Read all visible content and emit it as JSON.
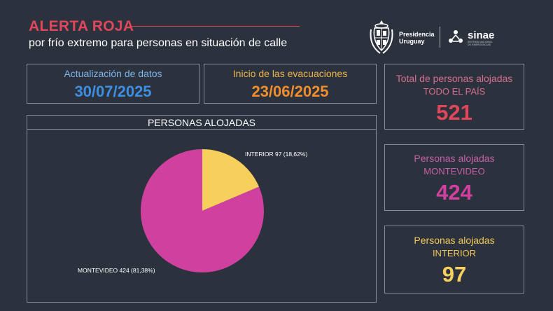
{
  "header": {
    "title": "ALERTA ROJA",
    "subtitle": "por frío extremo para personas en situación de calle"
  },
  "logos": {
    "presidencia_line1": "Presidencia",
    "presidencia_line2": "Uruguay",
    "sinae_name": "sinae",
    "sinae_line1": "SISTEMA NACIONAL",
    "sinae_line2": "DE EMERGENCIAS"
  },
  "cards": {
    "actualizacion": {
      "label": "Actualización de datos",
      "value": "30/07/2025"
    },
    "inicio": {
      "label": "Inicio de las evacuaciones",
      "value": "23/06/2025"
    },
    "total": {
      "label": "Total de personas alojadas",
      "scope": "TODO EL PAÍS",
      "value": "521"
    },
    "montevideo": {
      "label": "Personas alojadas",
      "scope": "MONTEVIDEO",
      "value": "424"
    },
    "interior": {
      "label": "Personas alojadas",
      "scope": "INTERIOR",
      "value": "97"
    }
  },
  "colors": {
    "background": "#2c323d",
    "red": "#e0475b",
    "blue": "#3d8fe4",
    "orange": "#f08e2d",
    "pink": "#d0409f",
    "yellow": "#f7cf5c",
    "label_pink": "#d86d8c",
    "label_magenta": "#c85fa8",
    "label_yellow": "#f3c759",
    "label_blue": "#7cb6ec",
    "label_orange": "#f0b54a"
  },
  "chart_data": {
    "type": "pie",
    "title": "PERSONAS ALOJADAS",
    "slices": [
      {
        "label": "INTERIOR 97 (18,62%)",
        "category": "INTERIOR",
        "value": 97,
        "percent": 18.62,
        "color": "#f7cf5c"
      },
      {
        "label": "MONTEVIDEO 424 (81,38%)",
        "category": "MONTEVIDEO",
        "value": 424,
        "percent": 81.38,
        "color": "#d0409f"
      }
    ],
    "start_angle": "12 o'clock",
    "direction": "clockwise"
  }
}
